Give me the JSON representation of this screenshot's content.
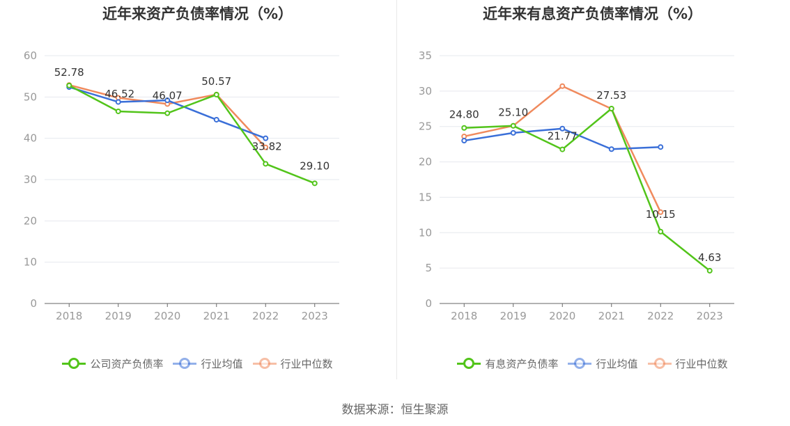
{
  "source_text": "数据来源：恒生聚源",
  "chart_data": [
    {
      "type": "line",
      "title": "近年来资产负债率情况（%）",
      "xlabel": "",
      "ylabel": "",
      "categories": [
        "2018",
        "2019",
        "2020",
        "2021",
        "2022",
        "2023"
      ],
      "ylim": [
        0,
        60
      ],
      "yticks": [
        0,
        10,
        20,
        30,
        40,
        50,
        60
      ],
      "grid": true,
      "legend_position": "bottom",
      "series": [
        {
          "name": "公司资产负债率",
          "color": "#52c41a",
          "values": [
            52.78,
            46.52,
            46.07,
            50.57,
            33.82,
            29.1
          ],
          "labels": [
            "52.78",
            "46.52",
            "46.07",
            "50.57",
            "33.82",
            "29.10"
          ]
        },
        {
          "name": "行业均值",
          "color": "#3a6fd8",
          "values": [
            52.4,
            48.8,
            49.2,
            44.5,
            40.0,
            null
          ]
        },
        {
          "name": "行业中位数",
          "color": "#f08a5d",
          "values": [
            52.9,
            49.8,
            48.3,
            50.6,
            37.8,
            null
          ]
        }
      ]
    },
    {
      "type": "line",
      "title": "近年来有息资产负债率情况（%）",
      "xlabel": "",
      "ylabel": "",
      "categories": [
        "2018",
        "2019",
        "2020",
        "2021",
        "2022",
        "2023"
      ],
      "ylim": [
        0,
        35
      ],
      "yticks": [
        0,
        5,
        10,
        15,
        20,
        25,
        30,
        35
      ],
      "grid": true,
      "legend_position": "bottom",
      "series": [
        {
          "name": "有息资产负债率",
          "color": "#52c41a",
          "values": [
            24.8,
            25.1,
            21.77,
            27.53,
            10.15,
            4.63
          ],
          "labels": [
            "24.80",
            "25.10",
            "21.77",
            "27.53",
            "10.15",
            "4.63"
          ]
        },
        {
          "name": "行业均值",
          "color": "#3a6fd8",
          "values": [
            23.0,
            24.1,
            24.7,
            21.8,
            22.1,
            null
          ]
        },
        {
          "name": "行业中位数",
          "color": "#f08a5d",
          "values": [
            23.6,
            25.1,
            30.7,
            27.5,
            12.9,
            null
          ]
        }
      ]
    }
  ]
}
